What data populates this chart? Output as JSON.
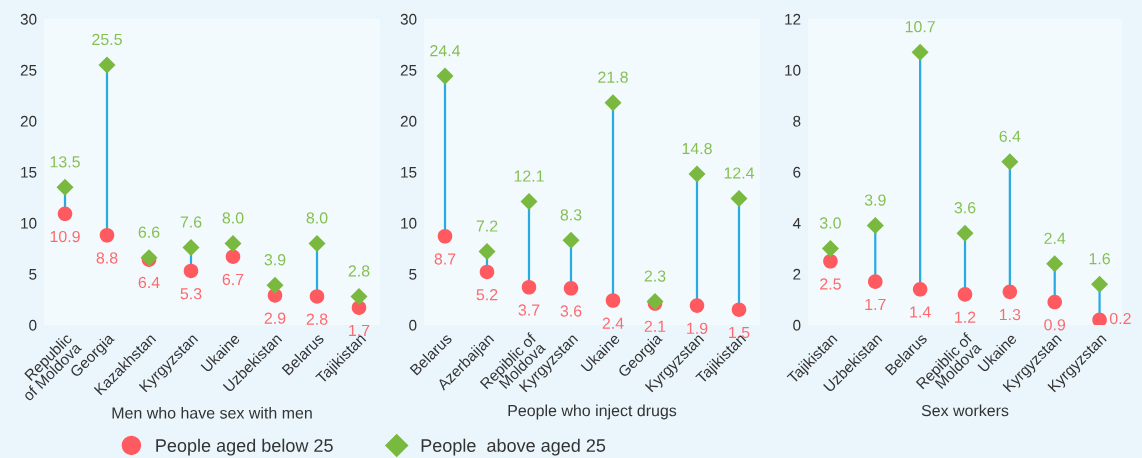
{
  "chart_data": [
    {
      "type": "lollipop",
      "xlabel": "Men who have sex with men",
      "categories": [
        "Republic\nof Moldova",
        "Georgia",
        "Kazakhstan",
        "Kyrgyzstan",
        "Ukaine",
        "Uzbekistan",
        "Belarus",
        "Tajikistan"
      ],
      "ylim": [
        0,
        30
      ],
      "yticks": [
        0,
        5,
        10,
        15,
        20,
        25,
        30
      ],
      "legend": "bottom",
      "series": [
        {
          "name": "People aged below 25",
          "color": "#ff5a5f",
          "marker": "circle",
          "values": [
            10.9,
            8.8,
            6.4,
            5.3,
            6.7,
            2.9,
            2.8,
            1.7
          ],
          "value_labels": [
            "10.9",
            "8.8",
            "6.4",
            "5.3",
            "6.7",
            "2.9",
            "2.8",
            "1.7"
          ]
        },
        {
          "name": "People  above aged 25",
          "color": "#7ab93f",
          "marker": "diamond",
          "values": [
            13.5,
            25.5,
            6.6,
            7.6,
            8.0,
            3.9,
            8.0,
            2.8
          ],
          "value_labels": [
            "13.5",
            "25.5",
            "6.6",
            "7.6",
            "8.0",
            "3.9",
            "8.0",
            "2.8"
          ]
        }
      ]
    },
    {
      "type": "lollipop",
      "xlabel": "People who inject drugs",
      "categories": [
        "Belarus",
        "Azerbaijan",
        "Repiblic of\nMoldova",
        "Kyrgyzstan",
        "Ukaine",
        "Georgia",
        "Kyrgyzstan",
        "Tajikistan"
      ],
      "ylim": [
        0,
        30
      ],
      "yticks": [
        0,
        5,
        10,
        15,
        20,
        25,
        30
      ],
      "series": [
        {
          "color": "#ff5a5f",
          "marker": "circle",
          "values": [
            8.7,
            5.2,
            3.7,
            3.6,
            2.4,
            2.1,
            1.9,
            1.5
          ],
          "value_labels": [
            "8.7",
            "5.2",
            "3.7",
            "3.6",
            "2.4",
            "2.1",
            "1.9",
            "1.5"
          ]
        },
        {
          "color": "#7ab93f",
          "marker": "diamond",
          "values": [
            24.4,
            7.2,
            12.1,
            8.3,
            21.8,
            2.3,
            14.8,
            12.4
          ],
          "value_labels": [
            "24.4",
            "7.2",
            "12.1",
            "8.3",
            "21.8",
            "2.3",
            "14.8",
            "12.4"
          ]
        }
      ]
    },
    {
      "type": "lollipop",
      "xlabel": "Sex workers",
      "categories": [
        "Tajikistan",
        "Uzbekistan",
        "Belarus",
        "Repiblic of\nMoldova",
        "Ukaine",
        "Kyrgyzstan",
        "Kyrgyzstan"
      ],
      "ylim": [
        0,
        12
      ],
      "yticks": [
        0,
        2,
        4,
        6,
        8,
        10,
        12
      ],
      "series": [
        {
          "color": "#ff5a5f",
          "marker": "circle",
          "values": [
            2.5,
            1.7,
            1.4,
            1.2,
            1.3,
            0.9,
            0.2
          ],
          "value_labels": [
            "2.5",
            "1.7",
            "1.4",
            "1.2",
            "1.3",
            "0.9",
            "0.2"
          ]
        },
        {
          "color": "#7ab93f",
          "marker": "diamond",
          "values": [
            3.0,
            3.9,
            10.7,
            3.6,
            6.4,
            2.4,
            1.6
          ],
          "value_labels": [
            "3.0",
            "3.9",
            "10.7",
            "3.6",
            "6.4",
            "2.4",
            "1.6"
          ]
        }
      ]
    }
  ]
}
